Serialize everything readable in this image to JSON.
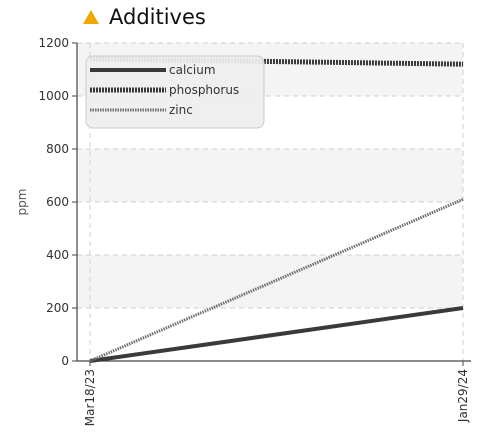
{
  "header": {
    "title": "Additives",
    "icon": "warning-triangle-icon",
    "icon_color": "#f0a800"
  },
  "chart_data": {
    "type": "line",
    "title": "Additives",
    "xlabel": "",
    "ylabel": "ppm",
    "x_ticks": [
      "Mar18/23",
      "Jan29/24"
    ],
    "ylim": [
      0,
      1200
    ],
    "y_ticks": [
      0,
      200,
      400,
      600,
      800,
      1000,
      1200
    ],
    "grid": true,
    "legend_position": "top-left",
    "series": [
      {
        "name": "calcium",
        "color": "#3a3a3a",
        "style": "solid",
        "values": [
          0,
          200
        ]
      },
      {
        "name": "phosphorus",
        "color": "#3a3a3a",
        "style": "dotted-thick",
        "values": [
          1140,
          1120
        ]
      },
      {
        "name": "zinc",
        "color": "#707070",
        "style": "dotted-thin",
        "values": [
          0,
          610
        ]
      }
    ]
  }
}
